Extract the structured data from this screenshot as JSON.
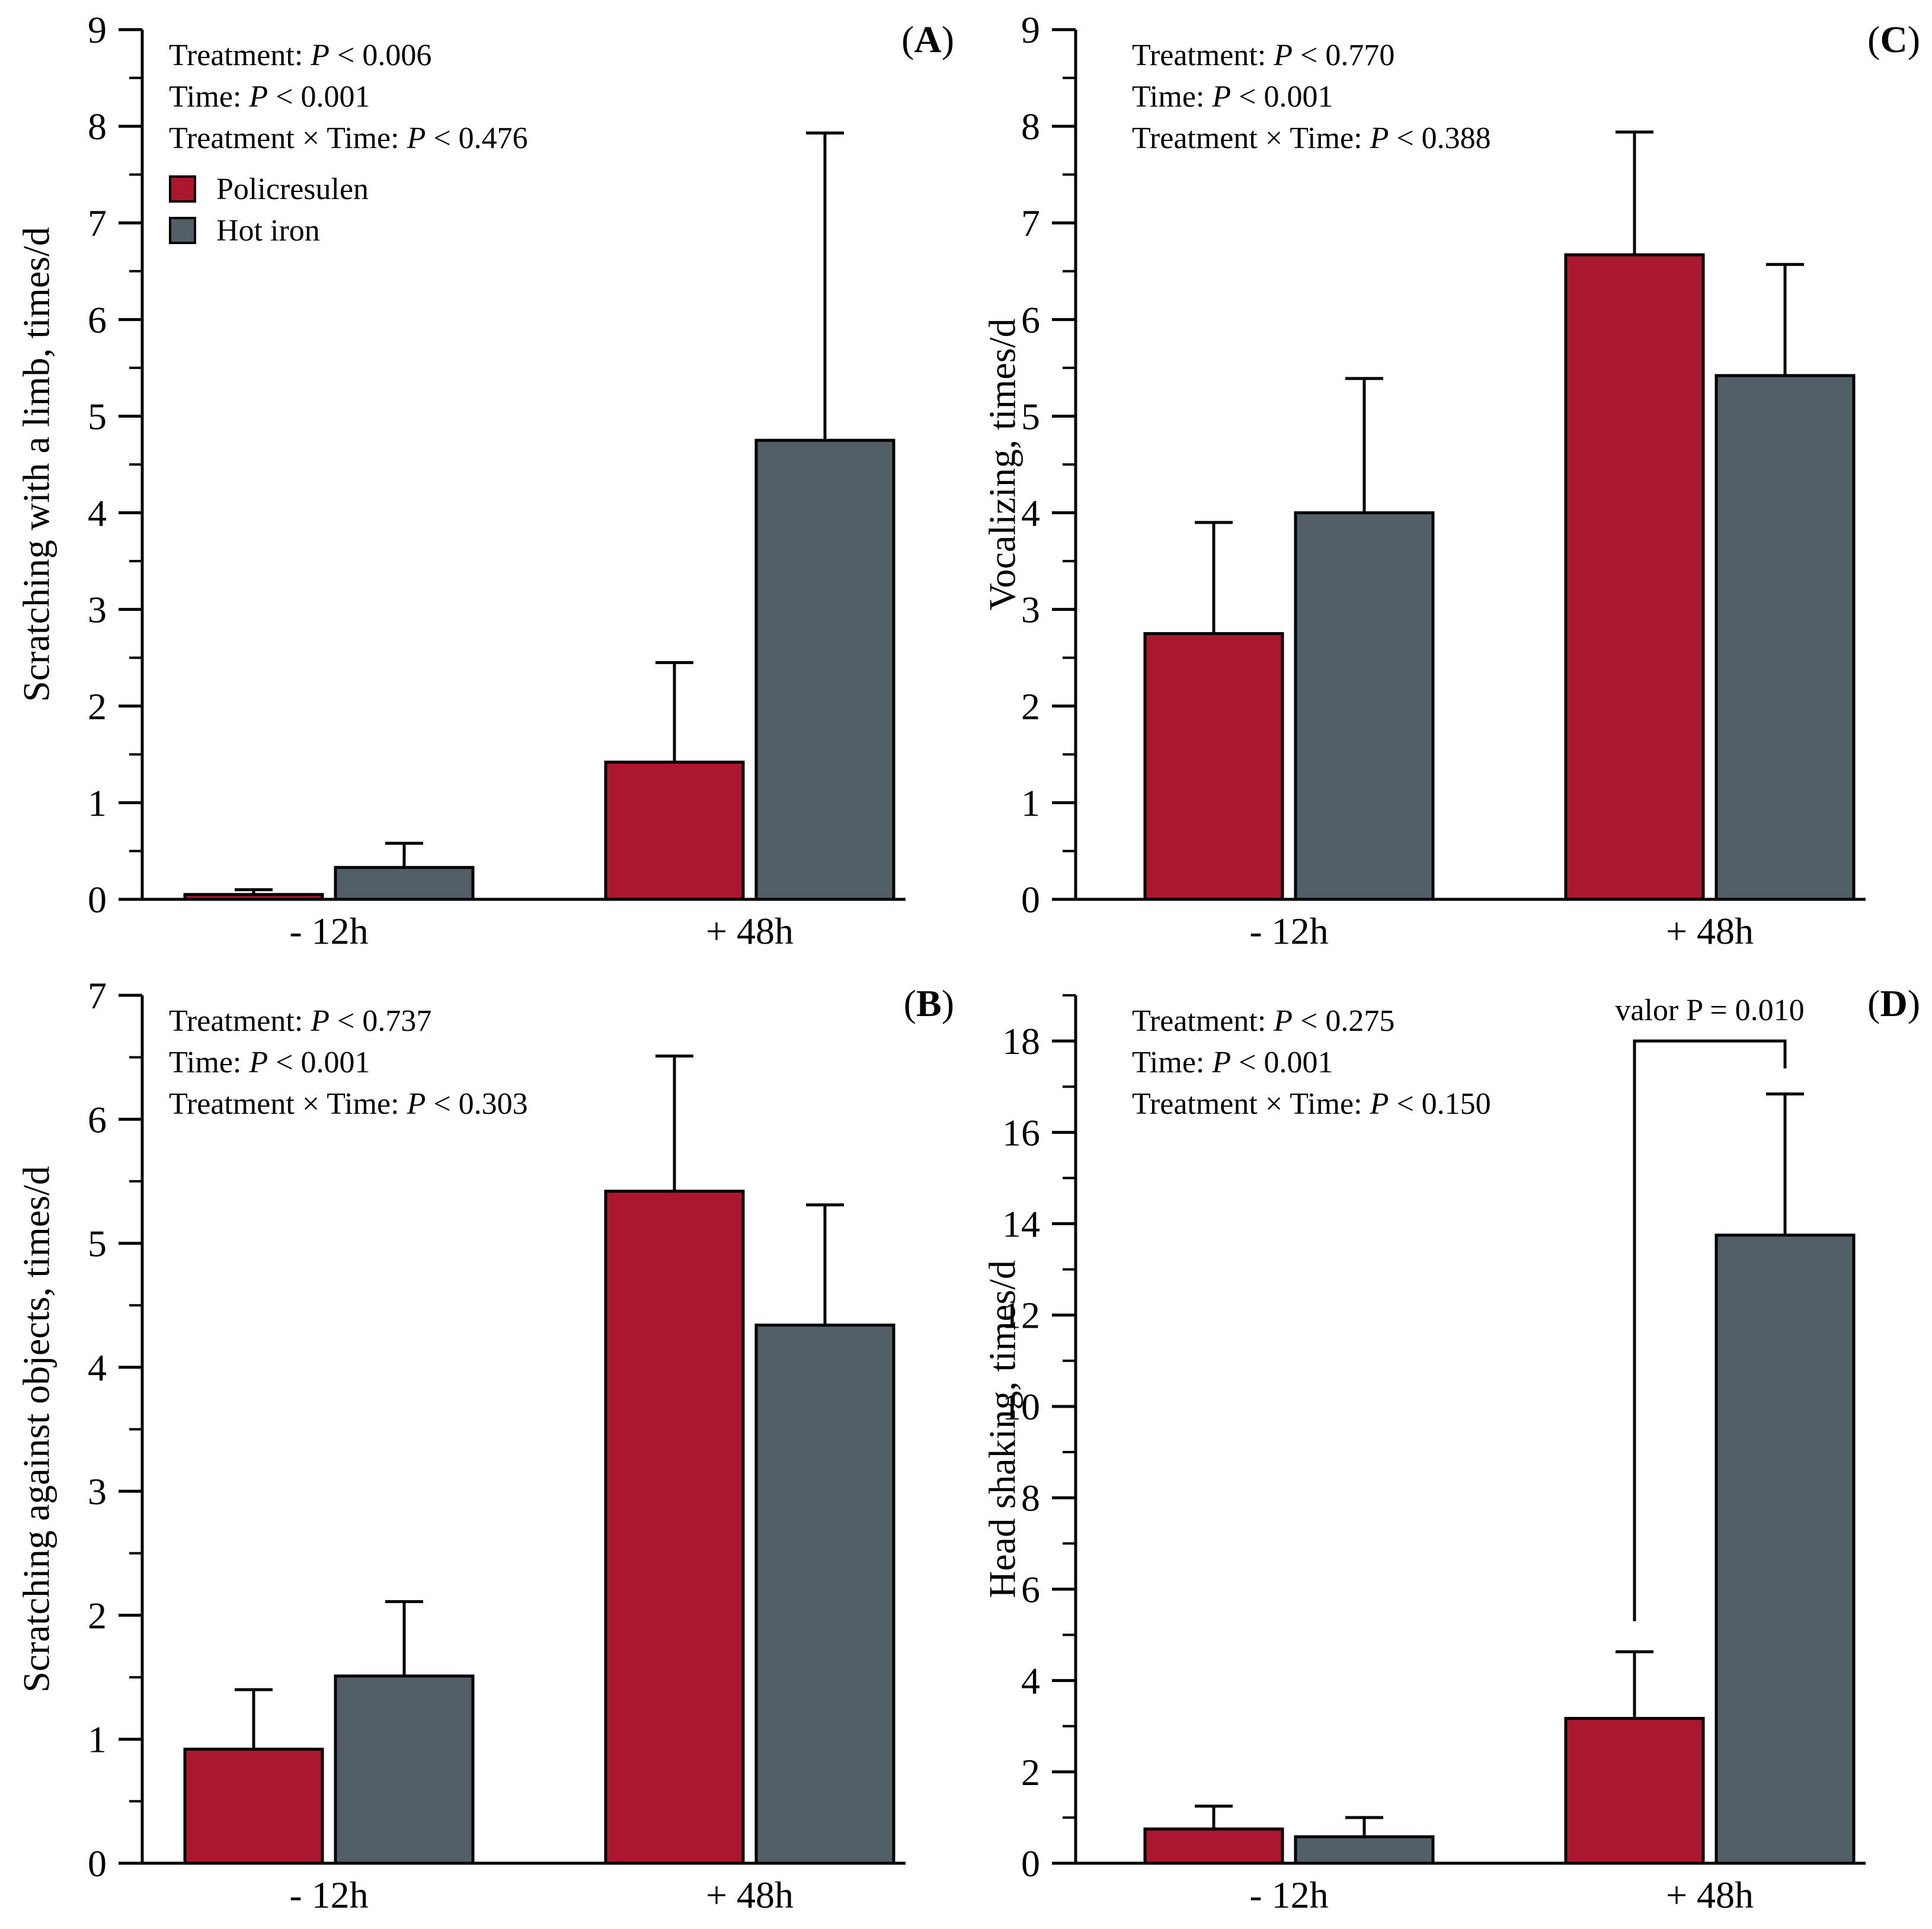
{
  "legend": {
    "items": [
      {
        "label": "Policresulen",
        "color": "#ab172c"
      },
      {
        "label": "Hot iron",
        "color": "#525f66"
      }
    ]
  },
  "chart_data": [
    {
      "id": "A",
      "panel_label": "A",
      "type": "bar",
      "ylabel": "Scratching with a limb, times/d",
      "ylim": [
        0,
        9
      ],
      "yticks": [
        "0",
        "1",
        "2",
        "3",
        "4",
        "5",
        "6",
        "7",
        "8",
        "9"
      ],
      "categories": [
        "- 12h",
        "+ 48h"
      ],
      "series": [
        {
          "name": "Policresulen",
          "values": [
            0.05,
            1.42
          ],
          "errors": [
            0.05,
            1.03
          ]
        },
        {
          "name": "Hot iron",
          "values": [
            0.33,
            4.75
          ],
          "errors": [
            0.25,
            3.18
          ]
        }
      ],
      "stats": [
        {
          "prefix": "Treatment: ",
          "p": "P",
          "suffix": " < 0.006"
        },
        {
          "prefix": "Time: ",
          "p": "P",
          "suffix": " < 0.001"
        },
        {
          "prefix": "Treatment × Time: ",
          "p": "P",
          "suffix": " < 0.476"
        }
      ],
      "show_legend": true
    },
    {
      "id": "B",
      "panel_label": "B",
      "type": "bar",
      "ylabel": "Scratching against objects, times/d",
      "ylim": [
        0,
        7
      ],
      "yticks": [
        "0",
        "1",
        "2",
        "3",
        "4",
        "5",
        "6",
        "7"
      ],
      "categories": [
        "- 12h",
        "+ 48h"
      ],
      "series": [
        {
          "name": "Policresulen",
          "values": [
            0.92,
            5.42
          ],
          "errors": [
            0.48,
            1.09
          ]
        },
        {
          "name": "Hot iron",
          "values": [
            1.51,
            4.34
          ],
          "errors": [
            0.6,
            0.97
          ]
        }
      ],
      "stats": [
        {
          "prefix": "Treatment: ",
          "p": "P",
          "suffix": " < 0.737"
        },
        {
          "prefix": "Time: ",
          "p": "P",
          "suffix": " < 0.001"
        },
        {
          "prefix": "Treatment × Time: ",
          "p": "P",
          "suffix": " < 0.303"
        }
      ]
    },
    {
      "id": "C",
      "panel_label": "C",
      "type": "bar",
      "ylabel": "Vocalizing, times/d",
      "ylim": [
        0,
        9
      ],
      "yticks": [
        "0",
        "1",
        "2",
        "3",
        "4",
        "5",
        "6",
        "7",
        "8",
        "9"
      ],
      "categories": [
        "- 12h",
        "+ 48h"
      ],
      "series": [
        {
          "name": "Policresulen",
          "values": [
            2.75,
            6.67
          ],
          "errors": [
            1.15,
            1.27
          ]
        },
        {
          "name": "Hot iron",
          "values": [
            4.0,
            5.42
          ],
          "errors": [
            1.39,
            1.15
          ]
        }
      ],
      "stats": [
        {
          "prefix": "Treatment: ",
          "p": "P",
          "suffix": " < 0.770"
        },
        {
          "prefix": "Time: ",
          "p": "P",
          "suffix": " < 0.001"
        },
        {
          "prefix": "Treatment × Time: ",
          "p": "P",
          "suffix": " < 0.388"
        }
      ]
    },
    {
      "id": "D",
      "panel_label": "D",
      "type": "bar",
      "ylabel": "Head shaking, times/d",
      "ylim": [
        0,
        19
      ],
      "yticks": [
        "0",
        "2",
        "4",
        "6",
        "8",
        "10",
        "12",
        "14",
        "16",
        "18"
      ],
      "ytick_values": [
        0,
        2,
        4,
        6,
        8,
        10,
        12,
        14,
        16,
        18
      ],
      "minor_step": 1,
      "categories": [
        "- 12h",
        "+ 48h"
      ],
      "series": [
        {
          "name": "Policresulen",
          "values": [
            0.75,
            3.17
          ],
          "errors": [
            0.5,
            1.46
          ]
        },
        {
          "name": "Hot iron",
          "values": [
            0.58,
            13.75
          ],
          "errors": [
            0.42,
            3.09
          ]
        }
      ],
      "stats": [
        {
          "prefix": "Treatment: ",
          "p": "P",
          "suffix": " < 0.275"
        },
        {
          "prefix": "Time: ",
          "p": "P",
          "suffix": " < 0.001"
        },
        {
          "prefix": "Treatment × Time: ",
          "p": "P",
          "suffix": " < 0.150"
        }
      ],
      "significance": {
        "label": "valor P = 0.010",
        "category": "+ 48h",
        "bracket_y": 18.0,
        "left_bottom": 5.3,
        "right_bottom": 17.4
      }
    }
  ]
}
